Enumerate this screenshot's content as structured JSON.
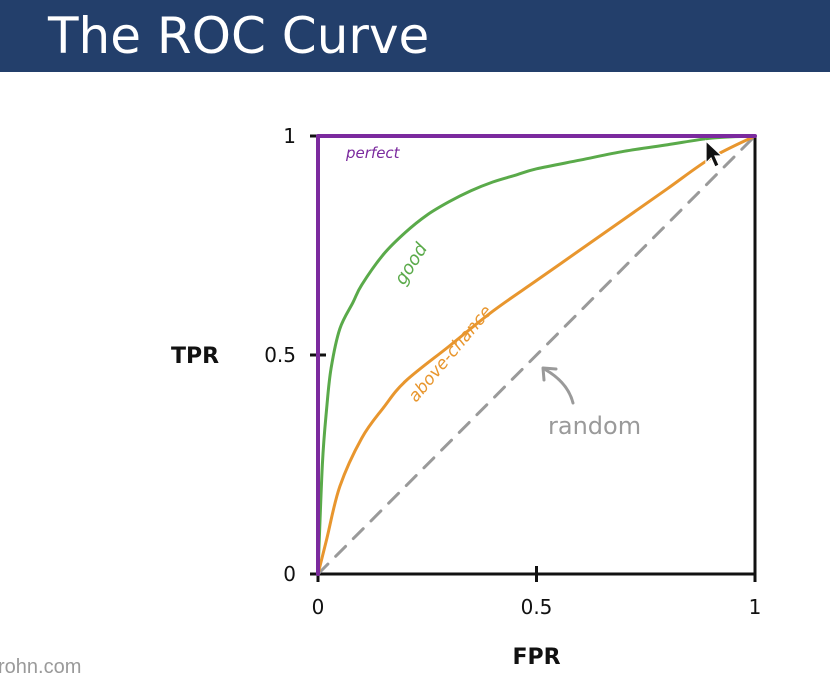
{
  "slide": {
    "title": "The ROC Curve",
    "footer": "rohn.com"
  },
  "colors": {
    "title_bar": "#233f6b",
    "perfect": "#7b2a9e",
    "good": "#5aaa4a",
    "above_chance": "#e8962e",
    "random": "#9a9a9a",
    "axis": "#111111"
  },
  "chart_data": {
    "type": "line",
    "xlabel": "FPR",
    "ylabel": "TPR",
    "xlim": [
      0,
      1
    ],
    "ylim": [
      0,
      1
    ],
    "x_ticks": [
      "0",
      "0.5",
      "1"
    ],
    "y_ticks": [
      "0",
      "0.5",
      "1"
    ],
    "grid": false,
    "series": [
      {
        "name": "perfect",
        "x": [
          0,
          0,
          1
        ],
        "y": [
          0,
          1,
          1
        ]
      },
      {
        "name": "good",
        "x": [
          0,
          0.01,
          0.02,
          0.03,
          0.05,
          0.08,
          0.1,
          0.15,
          0.2,
          0.25,
          0.3,
          0.35,
          0.4,
          0.45,
          0.5,
          0.6,
          0.7,
          0.8,
          0.9,
          1.0
        ],
        "y": [
          0,
          0.25,
          0.38,
          0.47,
          0.56,
          0.62,
          0.66,
          0.73,
          0.78,
          0.82,
          0.85,
          0.875,
          0.895,
          0.91,
          0.925,
          0.945,
          0.965,
          0.98,
          0.995,
          1.0
        ]
      },
      {
        "name": "above-chance",
        "x": [
          0,
          0.02,
          0.05,
          0.1,
          0.15,
          0.2,
          0.3,
          0.4,
          0.5,
          0.6,
          0.7,
          0.8,
          0.9,
          1.0
        ],
        "y": [
          0,
          0.08,
          0.2,
          0.31,
          0.38,
          0.44,
          0.52,
          0.6,
          0.67,
          0.74,
          0.81,
          0.88,
          0.95,
          1.0
        ]
      },
      {
        "name": "random",
        "x": [
          0,
          1
        ],
        "y": [
          0,
          1
        ]
      }
    ],
    "annotations": [
      "perfect",
      "good",
      "above-chance",
      "random"
    ]
  }
}
